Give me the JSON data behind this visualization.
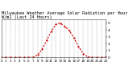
{
  "title": "Milwaukee Weather Average Solar Radiation per Hour W/m2 (Last 24 Hours)",
  "hours": [
    0,
    1,
    2,
    3,
    4,
    5,
    6,
    7,
    8,
    9,
    10,
    11,
    12,
    13,
    14,
    15,
    16,
    17,
    18,
    19,
    20,
    21,
    22,
    23
  ],
  "values": [
    0,
    0,
    0,
    0,
    0,
    0,
    0,
    2,
    35,
    120,
    250,
    380,
    480,
    500,
    450,
    390,
    280,
    160,
    55,
    8,
    0,
    0,
    0,
    0
  ],
  "line_color": "#cc0000",
  "bg_color": "#ffffff",
  "plot_bg": "#ffffff",
  "grid_color": "#888888",
  "ylim": [
    0,
    550
  ],
  "xlim": [
    0,
    23
  ],
  "ytick_values": [
    0,
    100,
    200,
    300,
    400,
    500
  ],
  "ytick_labels": [
    "0",
    "1.",
    "2.",
    "3.",
    "4.",
    "5."
  ],
  "xtick_values": [
    0,
    1,
    2,
    3,
    4,
    5,
    6,
    7,
    8,
    9,
    10,
    11,
    12,
    13,
    14,
    15,
    16,
    17,
    18,
    19,
    20,
    21,
    22,
    23
  ],
  "title_fontsize": 3.8,
  "tick_fontsize": 3.0,
  "line_width": 0.8,
  "marker_size": 1.0
}
